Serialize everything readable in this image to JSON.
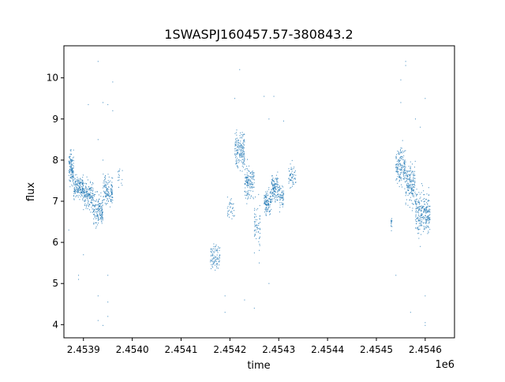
{
  "chart_data": {
    "type": "scatter",
    "title": "1SWASPJ160457.57-380843.2",
    "xlabel": "time",
    "ylabel": "flux",
    "x_offset_label": "1e6",
    "x_unit_scale": 1000000,
    "xlim": [
      2.45386,
      2.45466
    ],
    "ylim": [
      3.68,
      10.78
    ],
    "xticks": [
      2.4539,
      2.454,
      2.4541,
      2.4542,
      2.4543,
      2.4544,
      2.4545,
      2.4546
    ],
    "xtick_labels": [
      "2.4539",
      "2.4540",
      "2.4541",
      "2.4542",
      "2.4543",
      "2.4544",
      "2.4545",
      "2.4546"
    ],
    "yticks": [
      4,
      5,
      6,
      7,
      8,
      9,
      10
    ],
    "ytick_labels": [
      "4",
      "5",
      "6",
      "7",
      "8",
      "9",
      "10"
    ],
    "marker_color": "#1f77b4",
    "grid": false,
    "clusters": [
      {
        "x_range": [
          2.45387,
          2.45388
        ],
        "y_center": 7.8,
        "y_spread": 0.35,
        "n": 120
      },
      {
        "x_range": [
          2.45388,
          2.4539
        ],
        "y_center": 7.35,
        "y_spread": 0.25,
        "n": 160
      },
      {
        "x_range": [
          2.4539,
          2.45392
        ],
        "y_center": 7.15,
        "y_spread": 0.3,
        "n": 160
      },
      {
        "x_range": [
          2.45392,
          2.45394
        ],
        "y_center": 6.75,
        "y_spread": 0.35,
        "n": 160
      },
      {
        "x_range": [
          2.45394,
          2.45396
        ],
        "y_center": 7.25,
        "y_spread": 0.3,
        "n": 140
      },
      {
        "x_range": [
          2.45397,
          2.45398
        ],
        "y_center": 7.6,
        "y_spread": 0.25,
        "n": 15
      },
      {
        "x_range": [
          2.45416,
          2.45418
        ],
        "y_center": 5.65,
        "y_spread": 0.25,
        "n": 90
      },
      {
        "x_range": [
          2.454195,
          2.45421
        ],
        "y_center": 6.85,
        "y_spread": 0.25,
        "n": 35
      },
      {
        "x_range": [
          2.45421,
          2.45423
        ],
        "y_center": 8.25,
        "y_spread": 0.45,
        "n": 170
      },
      {
        "x_range": [
          2.45423,
          2.45425
        ],
        "y_center": 7.45,
        "y_spread": 0.35,
        "n": 140
      },
      {
        "x_range": [
          2.45425,
          2.454262
        ],
        "y_center": 6.4,
        "y_spread": 0.5,
        "n": 60
      },
      {
        "x_range": [
          2.45427,
          2.454285
        ],
        "y_center": 7.0,
        "y_spread": 0.25,
        "n": 120
      },
      {
        "x_range": [
          2.454285,
          2.4543
        ],
        "y_center": 7.3,
        "y_spread": 0.3,
        "n": 130
      },
      {
        "x_range": [
          2.4543,
          2.45431
        ],
        "y_center": 7.1,
        "y_spread": 0.25,
        "n": 60
      },
      {
        "x_range": [
          2.45432,
          2.454335
        ],
        "y_center": 7.6,
        "y_spread": 0.25,
        "n": 60
      },
      {
        "x_range": [
          2.45453,
          2.454532
        ],
        "y_center": 6.45,
        "y_spread": 0.15,
        "n": 15
      },
      {
        "x_range": [
          2.45454,
          2.45456
        ],
        "y_center": 7.85,
        "y_spread": 0.4,
        "n": 170
      },
      {
        "x_range": [
          2.45456,
          2.45458
        ],
        "y_center": 7.4,
        "y_spread": 0.45,
        "n": 170
      },
      {
        "x_range": [
          2.45458,
          2.4546
        ],
        "y_center": 6.75,
        "y_spread": 0.45,
        "n": 170
      },
      {
        "x_range": [
          2.4546,
          2.45461
        ],
        "y_center": 6.7,
        "y_spread": 0.4,
        "n": 100
      }
    ],
    "outliers": [
      [
        2.45389,
        5.1
      ],
      [
        2.45389,
        5.2
      ],
      [
        2.45393,
        4.7
      ],
      [
        2.45393,
        4.1
      ],
      [
        2.45393,
        10.4
      ],
      [
        2.45394,
        9.4
      ],
      [
        2.45395,
        9.35
      ],
      [
        2.45394,
        8.0
      ],
      [
        2.45395,
        5.2
      ],
      [
        2.45395,
        4.55
      ],
      [
        2.45395,
        4.2
      ],
      [
        2.45394,
        3.98
      ],
      [
        2.45396,
        9.9
      ],
      [
        2.45396,
        9.2
      ],
      [
        2.45393,
        8.5
      ],
      [
        2.45391,
        9.35
      ],
      [
        2.45387,
        6.3
      ],
      [
        2.4539,
        5.7
      ],
      [
        2.45419,
        4.3
      ],
      [
        2.45419,
        4.7
      ],
      [
        2.45421,
        9.5
      ],
      [
        2.45422,
        10.2
      ],
      [
        2.45423,
        4.6
      ],
      [
        2.45425,
        4.4
      ],
      [
        2.45427,
        9.55
      ],
      [
        2.45429,
        9.55
      ],
      [
        2.45428,
        5.0
      ],
      [
        2.45428,
        9.0
      ],
      [
        2.45426,
        5.5
      ],
      [
        2.45431,
        8.95
      ],
      [
        2.45454,
        5.2
      ],
      [
        2.45456,
        10.4
      ],
      [
        2.45456,
        10.3
      ],
      [
        2.45455,
        9.95
      ],
      [
        2.45455,
        9.4
      ],
      [
        2.45457,
        4.3
      ],
      [
        2.45458,
        9.0
      ],
      [
        2.45459,
        8.8
      ],
      [
        2.4546,
        9.5
      ],
      [
        2.4546,
        3.98
      ],
      [
        2.4546,
        4.05
      ],
      [
        2.4546,
        4.7
      ],
      [
        2.45459,
        5.9
      ]
    ]
  }
}
